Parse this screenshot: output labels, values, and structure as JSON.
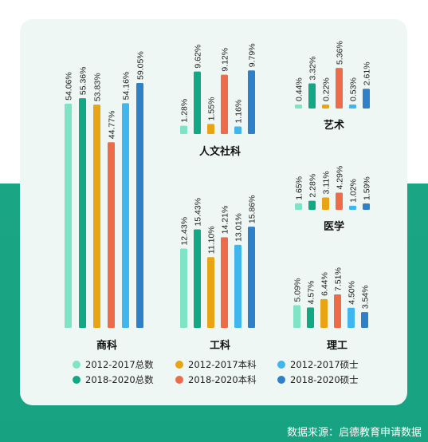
{
  "source": "数据来源：启德教育申请数据",
  "colors": {
    "c2012_total": "#7fe3c6",
    "c2018_total": "#12a883",
    "c2012_bk": "#e8a413",
    "c2018_bk": "#ee6b4a",
    "c2012_ss": "#3fb6ee",
    "c2018_ss": "#2f7fc9",
    "bg_green": "#1aa585",
    "card": "#eef7f3"
  },
  "chart_data": {
    "type": "bar",
    "series": [
      {
        "name": "2012-2017总数",
        "color": "#7fe3c6"
      },
      {
        "name": "2018-2020总数",
        "color": "#12a883"
      },
      {
        "name": "2012-2017本科",
        "color": "#e8a413"
      },
      {
        "name": "2018-2020本科",
        "color": "#ee6b4a"
      },
      {
        "name": "2012-2017硕士",
        "color": "#3fb6ee"
      },
      {
        "name": "2018-2020硕士",
        "color": "#2f7fc9"
      }
    ],
    "panels": [
      {
        "name": "商科",
        "values": [
          54.06,
          55.36,
          53.83,
          44.77,
          54.16,
          59.05
        ],
        "labels": [
          "54.06%",
          "55.36%",
          "53.83%",
          "44.77%",
          "54.16%",
          "59.05%"
        ]
      },
      {
        "name": "人文社科",
        "values": [
          1.28,
          9.62,
          1.55,
          9.12,
          1.16,
          9.79
        ],
        "labels": [
          "1.28%",
          "9.62%",
          "1.55%",
          "9.12%",
          "1.16%",
          "9.79%"
        ]
      },
      {
        "name": "艺术",
        "values": [
          0.44,
          3.32,
          0.22,
          5.36,
          0.53,
          2.61
        ],
        "labels": [
          "0.44%",
          "3.32%",
          "0.22%",
          "5.36%",
          "0.53%",
          "2.61%"
        ]
      },
      {
        "name": "工科",
        "values": [
          12.43,
          15.43,
          11.1,
          14.21,
          13.01,
          15.86
        ],
        "labels": [
          "12.43%",
          "15.43%",
          "11.10%",
          "14.21%",
          "13.01%",
          "15.86%"
        ]
      },
      {
        "name": "医学",
        "values": [
          1.65,
          2.28,
          3.11,
          4.29,
          1.02,
          1.59
        ],
        "labels": [
          "1.65%",
          "2.28%",
          "3.11%",
          "4.29%",
          "1.02%",
          "1.59%"
        ]
      },
      {
        "name": "理工",
        "values": [
          5.09,
          4.57,
          6.44,
          7.51,
          4.5,
          3.54
        ],
        "labels": [
          "5.09%",
          "4.57%",
          "6.44%",
          "7.51%",
          "4.50%",
          "3.54%"
        ]
      }
    ]
  }
}
